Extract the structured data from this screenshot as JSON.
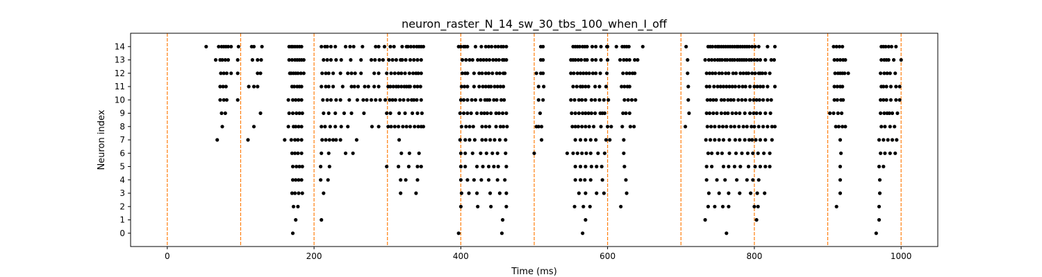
{
  "chart_data": {
    "type": "scatter",
    "title": "neuron_raster_N_14_sw_30_tbs_100_when_I_off",
    "xlabel": "Time (ms)",
    "ylabel": "Neuron index",
    "xlim": [
      -50,
      1050
    ],
    "ylim": [
      -1,
      15
    ],
    "xticks": [
      0,
      200,
      400,
      600,
      800,
      1000
    ],
    "yticks": [
      0,
      1,
      2,
      3,
      4,
      5,
      6,
      7,
      8,
      9,
      10,
      11,
      12,
      13,
      14
    ],
    "grid": false,
    "marker_color": "#000000",
    "vline_color": "#ff7f0e",
    "stimulus_lines": [
      0,
      100,
      200,
      300,
      400,
      500,
      600,
      700,
      800,
      900,
      1000
    ],
    "spikes": [
      {
        "neuron": 14,
        "times": [
          53,
          70,
          74,
          77,
          80,
          83,
          87,
          97,
          115,
          118,
          129,
          166,
          169,
          171,
          174,
          177,
          180,
          183,
          210,
          215,
          218,
          223,
          229,
          243,
          249,
          254,
          266,
          284,
          288,
          296,
          304,
          309,
          320,
          326,
          328,
          332,
          336,
          340,
          343,
          346,
          349,
          397,
          400,
          404,
          406,
          409,
          420,
          428,
          434,
          438,
          442,
          447,
          451,
          455,
          458,
          462,
          509,
          512,
          553,
          556,
          559,
          562,
          566,
          569,
          572,
          579,
          584,
          591,
          599,
          600,
          612,
          620,
          623,
          626,
          629,
          648,
          707,
          737,
          740,
          743,
          747,
          750,
          752,
          755,
          758,
          761,
          764,
          767,
          770,
          773,
          776,
          778,
          781,
          784,
          787,
          790,
          793,
          797,
          801,
          806,
          818,
          828,
          908,
          912,
          916,
          920,
          973,
          976,
          979,
          983,
          987,
          993
        ]
      },
      {
        "neuron": 13,
        "times": [
          66,
          72,
          75,
          79,
          83,
          96,
          116,
          123,
          128,
          166,
          170,
          174,
          177,
          180,
          183,
          186,
          213,
          218,
          223,
          230,
          237,
          250,
          264,
          278,
          283,
          289,
          294,
          302,
          307,
          312,
          318,
          320,
          325,
          331,
          336,
          341,
          346,
          402,
          407,
          412,
          416,
          423,
          427,
          431,
          435,
          439,
          444,
          448,
          452,
          457,
          459,
          462,
          509,
          512,
          550,
          553,
          556,
          560,
          564,
          569,
          572,
          579,
          584,
          591,
          600,
          617,
          622,
          626,
          630,
          637,
          641,
          709,
          733,
          738,
          742,
          746,
          750,
          753,
          756,
          760,
          763,
          767,
          770,
          773,
          777,
          780,
          783,
          786,
          789,
          793,
          796,
          800,
          804,
          808,
          815,
          823,
          827,
          909,
          913,
          917,
          921,
          924,
          973,
          977,
          980,
          983,
          990,
          1000
        ]
      },
      {
        "neuron": 12,
        "times": [
          73,
          77,
          81,
          87,
          96,
          123,
          127,
          167,
          169,
          172,
          175,
          178,
          182,
          186,
          211,
          216,
          220,
          226,
          236,
          246,
          251,
          256,
          264,
          282,
          288,
          299,
          305,
          310,
          315,
          319,
          324,
          330,
          335,
          339,
          342,
          346,
          402,
          406,
          409,
          418,
          425,
          429,
          434,
          438,
          443,
          449,
          453,
          458,
          460,
          503,
          509,
          512,
          550,
          554,
          559,
          563,
          567,
          571,
          575,
          580,
          584,
          590,
          599,
          621,
          626,
          630,
          634,
          637,
          709,
          735,
          739,
          743,
          747,
          752,
          756,
          761,
          765,
          771,
          775,
          781,
          785,
          789,
          792,
          797,
          801,
          806,
          808,
          811,
          815,
          821,
          910,
          914,
          917,
          920,
          923,
          928,
          972,
          977,
          981,
          985,
          992
        ]
      },
      {
        "neuron": 11,
        "times": [
          72,
          76,
          80,
          111,
          118,
          123,
          170,
          173,
          177,
          180,
          183,
          210,
          216,
          220,
          226,
          239,
          251,
          255,
          260,
          269,
          274,
          282,
          288,
          301,
          304,
          308,
          312,
          315,
          319,
          323,
          326,
          329,
          331,
          337,
          341,
          345,
          401,
          405,
          409,
          418,
          425,
          430,
          434,
          438,
          441,
          446,
          450,
          454,
          458,
          506,
          513,
          553,
          558,
          563,
          566,
          570,
          574,
          583,
          589,
          598,
          619,
          623,
          627,
          630,
          710,
          735,
          739,
          745,
          750,
          754,
          758,
          762,
          766,
          770,
          774,
          779,
          784,
          788,
          794,
          800,
          804,
          808,
          812,
          818,
          828,
          909,
          913,
          917,
          920,
          973,
          976,
          980,
          986,
          993,
          998
        ]
      },
      {
        "neuron": 10,
        "times": [
          72,
          77,
          81,
          96,
          165,
          171,
          175,
          179,
          183,
          212,
          218,
          223,
          230,
          236,
          248,
          259,
          267,
          272,
          278,
          284,
          290,
          297,
          303,
          307,
          311,
          317,
          322,
          328,
          333,
          336,
          340,
          346,
          400,
          404,
          409,
          415,
          420,
          427,
          433,
          436,
          439,
          445,
          449,
          455,
          459,
          506,
          512,
          550,
          555,
          561,
          565,
          570,
          578,
          583,
          589,
          595,
          601,
          623,
          628,
          633,
          638,
          710,
          736,
          740,
          744,
          748,
          755,
          759,
          764,
          768,
          772,
          778,
          783,
          788,
          794,
          799,
          803,
          807,
          812,
          818,
          823,
          909,
          913,
          918,
          921,
          972,
          976,
          980,
          986,
          993,
          998
        ]
      },
      {
        "neuron": 9,
        "times": [
          74,
          79,
          127,
          166,
          171,
          176,
          180,
          184,
          213,
          220,
          229,
          241,
          251,
          268,
          299,
          304,
          316,
          324,
          334,
          341,
          347,
          399,
          404,
          409,
          414,
          422,
          428,
          432,
          436,
          441,
          448,
          452,
          457,
          462,
          508,
          551,
          556,
          561,
          566,
          570,
          574,
          578,
          583,
          590,
          593,
          596,
          621,
          625,
          630,
          711,
          735,
          739,
          744,
          749,
          755,
          760,
          764,
          770,
          775,
          780,
          787,
          794,
          799,
          803,
          808,
          815,
          822,
          903,
          908,
          914,
          919,
          972,
          977,
          981,
          984,
          988,
          995
        ]
      },
      {
        "neuron": 8,
        "times": [
          75,
          118,
          165,
          172,
          175,
          179,
          183,
          210,
          215,
          222,
          229,
          237,
          246,
          279,
          288,
          301,
          305,
          310,
          315,
          321,
          326,
          331,
          337,
          342,
          346,
          349,
          401,
          407,
          412,
          417,
          429,
          434,
          439,
          448,
          454,
          458,
          463,
          503,
          506,
          510,
          552,
          556,
          560,
          565,
          570,
          575,
          581,
          591,
          600,
          605,
          620,
          631,
          636,
          706,
          736,
          741,
          746,
          752,
          757,
          762,
          768,
          773,
          779,
          785,
          790,
          796,
          800,
          806,
          812,
          818,
          824,
          828,
          911,
          915,
          920,
          924,
          973,
          978,
          985,
          991
        ]
      },
      {
        "neuron": 7,
        "times": [
          68,
          110,
          160,
          169,
          174,
          178,
          183,
          211,
          216,
          221,
          226,
          230,
          236,
          258,
          316,
          399,
          406,
          412,
          419,
          429,
          434,
          440,
          446,
          453,
          461,
          510,
          556,
          563,
          570,
          577,
          584,
          598,
          603,
          622,
          734,
          740,
          746,
          752,
          758,
          766,
          774,
          780,
          787,
          793,
          797,
          802,
          808,
          815,
          824,
          917,
          970,
          976,
          982,
          988,
          994
        ]
      },
      {
        "neuron": 6,
        "times": [
          170,
          174,
          178,
          183,
          210,
          220,
          243,
          253,
          319,
          330,
          343,
          400,
          406,
          416,
          427,
          435,
          443,
          450,
          461,
          500,
          545,
          553,
          559,
          565,
          571,
          577,
          587,
          596,
          622,
          737,
          742,
          750,
          756,
          766,
          775,
          783,
          791,
          798,
          805,
          813,
          821,
          918,
          972,
          978,
          985,
          992
        ]
      },
      {
        "neuron": 5,
        "times": [
          171,
          176,
          180,
          184,
          209,
          221,
          299,
          315,
          329,
          341,
          346,
          400,
          406,
          422,
          430,
          438,
          445,
          451,
          462,
          556,
          563,
          570,
          578,
          585,
          592,
          623,
          735,
          742,
          758,
          765,
          773,
          781,
          792,
          801,
          808,
          815,
          821,
          917,
          970,
          976
        ]
      },
      {
        "neuron": 4,
        "times": [
          171,
          175,
          179,
          183,
          209,
          219,
          318,
          325,
          341,
          400,
          409,
          418,
          428,
          438,
          450,
          460,
          556,
          563,
          569,
          577,
          593,
          625,
          735,
          749,
          760,
          776,
          790,
          798,
          806,
          917,
          971
        ]
      },
      {
        "neuron": 3,
        "times": [
          170,
          174,
          179,
          184,
          213,
          318,
          339,
          401,
          411,
          422,
          440,
          453,
          462,
          561,
          570,
          585,
          595,
          626,
          738,
          752,
          765,
          780,
          795,
          804,
          814,
          917,
          971
        ]
      },
      {
        "neuron": 2,
        "times": [
          172,
          178,
          400,
          423,
          441,
          462,
          555,
          567,
          576,
          618,
          737,
          746,
          757,
          765,
          800,
          805,
          912,
          970
        ]
      },
      {
        "neuron": 1,
        "times": [
          175,
          210,
          457,
          570,
          733,
          803,
          970
        ]
      },
      {
        "neuron": 0,
        "times": [
          171,
          397,
          456,
          566,
          762,
          966
        ]
      }
    ]
  }
}
